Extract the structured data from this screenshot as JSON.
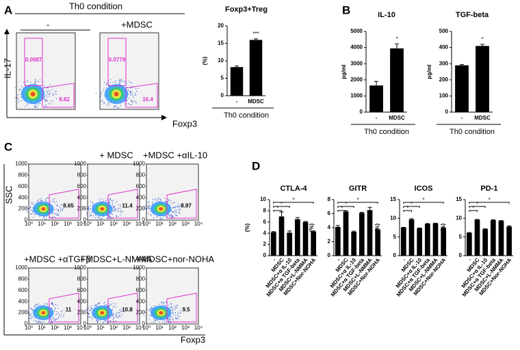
{
  "panel_letters": [
    "A",
    "B",
    "C",
    "D"
  ],
  "panel_a": {
    "header": "Th0 condition",
    "columns": [
      "-",
      "+MDSC"
    ],
    "y_label": "IL-17",
    "x_label": "Foxp3",
    "gates": [
      [
        "0.0987",
        "8.82"
      ],
      [
        "0.0779",
        "16.4"
      ]
    ]
  },
  "panel_c": {
    "y_label": "SSC",
    "x_label": "Foxp3",
    "yticks": [
      0,
      200,
      400,
      600,
      800,
      1000
    ],
    "xticks": [
      "10⁰",
      "10¹",
      "10²",
      "10³",
      "10⁴"
    ],
    "plots": [
      {
        "gate": "8.65"
      },
      {
        "title": "+ MDSC",
        "gate": "11.4"
      },
      {
        "title": "+MDSC +αIL-10",
        "gate": "8.97"
      },
      {
        "title": "+MDSC +αTGFβ",
        "gate": "11"
      },
      {
        "title": "+MDSC+L-NMMA",
        "gate": "10.8"
      },
      {
        "title": "+MDSC+nor-NOHA",
        "gate": "9.5"
      }
    ]
  },
  "chart_data": [
    {
      "type": "bar",
      "title": "Foxp3+Treg",
      "y_label": "(%)",
      "categories": [
        "-",
        "MDSC"
      ],
      "values": [
        8.2,
        16
      ],
      "errors": [
        0.3,
        0.3
      ],
      "ylim": [
        0,
        20
      ],
      "yticks": [
        0,
        5,
        10,
        15,
        20
      ],
      "color": "#000000",
      "annotations": [
        "***"
      ],
      "group_label": "Th0 condition"
    },
    {
      "type": "bar",
      "title": "IL-10",
      "y_label": "pg/ml",
      "categories": [
        "-",
        "MDSC"
      ],
      "values": [
        1650,
        3950
      ],
      "errors": [
        250,
        280
      ],
      "ylim": [
        0,
        5000
      ],
      "yticks": [
        0,
        1000,
        2000,
        3000,
        4000,
        5000
      ],
      "color": "#000000",
      "annotations": [
        "*"
      ],
      "group_label": "Th0 condition"
    },
    {
      "type": "bar",
      "title": "TGF-beta",
      "y_label": "pg/ml",
      "categories": [
        "-",
        "MDSC"
      ],
      "values": [
        290,
        410
      ],
      "errors": [
        5,
        10
      ],
      "ylim": [
        0,
        500
      ],
      "yticks": [
        0,
        100,
        200,
        300,
        400,
        500
      ],
      "color": "#000000",
      "annotations": [
        "*"
      ],
      "group_label": "Th0 condition"
    },
    {
      "type": "bar",
      "title": "CTLA-4",
      "y_label": "(%)",
      "categories": [
        "-",
        "MDSC",
        "MDSC+α IL-10",
        "MDSC+α TGF-beta",
        "MDSC+L-NMMA",
        "MDSC+Nor-NOHA"
      ],
      "values": [
        4.2,
        7,
        4.1,
        6.5,
        6,
        4.3
      ],
      "errors": [
        0.1,
        0.8,
        0.3,
        0.3,
        0.1,
        0.1
      ],
      "ylim": [
        0,
        10
      ],
      "yticks": [
        0,
        2,
        4,
        6,
        8,
        10
      ],
      "color": "#000000",
      "annotations": [
        "*",
        "*",
        "*"
      ]
    },
    {
      "type": "bar",
      "title": "GITR",
      "y_label": "(%)",
      "categories": [
        "-",
        "MDSC",
        "MDSC+α IL-10",
        "MDSC+α TGF-beta",
        "MDSC+L-NMMA",
        "MDSC+Nor-NOHA"
      ],
      "values": [
        4.1,
        6.3,
        3.4,
        6.1,
        6.5,
        3.7
      ],
      "errors": [
        0.2,
        0.1,
        0.1,
        0.1,
        0.4,
        0.1
      ],
      "ylim": [
        0,
        8
      ],
      "yticks": [
        0,
        2,
        4,
        6,
        8
      ],
      "color": "#000000",
      "annotations": [
        "*",
        "*",
        "*"
      ]
    },
    {
      "type": "bar",
      "title": "ICOS",
      "y_label": "(%)",
      "categories": [
        "-",
        "MDSC",
        "MDSC+α IL-10",
        "MDSC+α TGF-beta",
        "MDSC+L-NMMA",
        "MDSC+Nor-NOHA"
      ],
      "values": [
        7.5,
        9.7,
        7.3,
        8.5,
        8.6,
        7.4
      ],
      "errors": [
        0.1,
        0.2,
        0.1,
        0.1,
        0.1,
        0.1
      ],
      "ylim": [
        0,
        15
      ],
      "yticks": [
        0,
        5,
        10,
        15
      ],
      "color": "#000000",
      "annotations": [
        "*",
        "*",
        "*"
      ]
    },
    {
      "type": "bar",
      "title": "PD-1",
      "y_label": "(%)",
      "categories": [
        "-",
        "MDSC",
        "MDSC+α IL-10",
        "MDSC+α TGF-beta",
        "MDSC+L-NMMA",
        "MDSC+Nor-NOHA"
      ],
      "values": [
        6.1,
        9.6,
        7.1,
        9.5,
        9.3,
        7.8
      ],
      "errors": [
        0.1,
        0.1,
        0.1,
        0.1,
        0.1,
        0.2
      ],
      "ylim": [
        0,
        15
      ],
      "yticks": [
        0,
        5,
        10,
        15
      ],
      "color": "#000000",
      "annotations": [
        "*",
        "*",
        "*"
      ]
    }
  ]
}
